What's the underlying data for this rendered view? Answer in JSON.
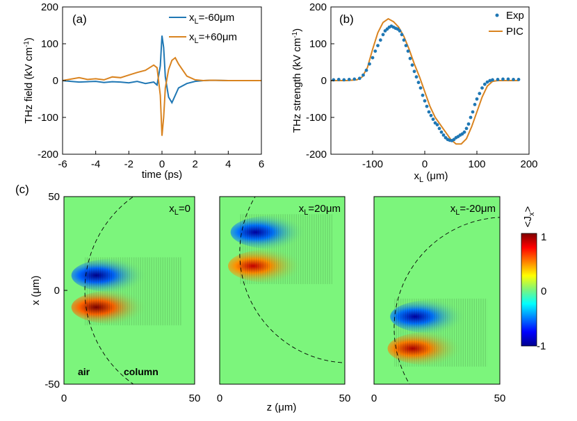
{
  "colors": {
    "blue": "#1f77b4",
    "orange": "#d9831f",
    "panel_bg": "#7cf57c"
  },
  "chart_data": [
    {
      "type": "line",
      "panel_label": "(a)",
      "xlabel": "time (ps)",
      "ylabel": "THz field (kV cm-1)",
      "xlim": [
        -6,
        6
      ],
      "ylim": [
        -200,
        200
      ],
      "xticks": [
        "-6",
        "-4",
        "-2",
        "0",
        "2",
        "4",
        "6"
      ],
      "yticks": [
        "-200",
        "-100",
        "0",
        "100",
        "200"
      ],
      "legend_position": "top-right",
      "series": [
        {
          "name": "x_L=-60μm",
          "legend_main": "x",
          "legend_sub": "L",
          "legend_rest": "=-60μm",
          "color": "#1f77b4",
          "x": [
            -6,
            -5.5,
            -5,
            -4.5,
            -4,
            -3.5,
            -3,
            -2.5,
            -2,
            -1.5,
            -1,
            -0.5,
            -0.3,
            -0.1,
            0,
            0.1,
            0.2,
            0.4,
            0.6,
            0.8,
            1,
            1.5,
            2,
            2.5,
            3,
            4,
            5,
            6
          ],
          "y": [
            0,
            -2,
            -4,
            -3,
            -2,
            -5,
            -3,
            -4,
            -6,
            -2,
            -8,
            -4,
            -12,
            40,
            122,
            90,
            10,
            -45,
            -60,
            -40,
            -20,
            -8,
            -2,
            0,
            1,
            0,
            0,
            0
          ]
        },
        {
          "name": "x_L=+60μm",
          "legend_main": "x",
          "legend_sub": "L",
          "legend_rest": "=+60μm",
          "color": "#d9831f",
          "x": [
            -6,
            -5.5,
            -5,
            -4.5,
            -4,
            -3.5,
            -3,
            -2.5,
            -2,
            -1.5,
            -1,
            -0.5,
            -0.3,
            -0.1,
            0,
            0.1,
            0.2,
            0.4,
            0.6,
            0.8,
            1,
            1.5,
            2,
            2.5,
            3,
            4,
            5,
            6
          ],
          "y": [
            0,
            4,
            8,
            3,
            5,
            2,
            10,
            8,
            15,
            22,
            28,
            42,
            35,
            -40,
            -150,
            -100,
            -20,
            30,
            55,
            62,
            45,
            12,
            2,
            0,
            1,
            0,
            0,
            0
          ]
        }
      ]
    },
    {
      "type": "scatter+line",
      "panel_label": "(b)",
      "xlabel": "x_L (μm)",
      "xlabel_main": "x",
      "xlabel_sub": "L",
      "xlabel_rest": " (μm)",
      "ylabel": "THz strength (kV cm-1)",
      "xlim": [
        -180,
        200
      ],
      "ylim": [
        -200,
        200
      ],
      "xticks": [
        "-100",
        "0",
        "100",
        "200"
      ],
      "yticks": [
        "-200",
        "-100",
        "0",
        "100",
        "200"
      ],
      "legend_position": "top-right",
      "series": [
        {
          "name": "Exp",
          "kind": "scatter",
          "color": "#1f77b4",
          "x": [
            -175,
            -165,
            -155,
            -145,
            -135,
            -125,
            -118,
            -112,
            -106,
            -100,
            -95,
            -90,
            -85,
            -80,
            -76,
            -72,
            -68,
            -64,
            -60,
            -56,
            -52,
            -48,
            -44,
            -40,
            -36,
            -32,
            -28,
            -24,
            -20,
            -16,
            -12,
            -8,
            -4,
            0,
            4,
            8,
            12,
            16,
            20,
            24,
            28,
            32,
            36,
            40,
            44,
            48,
            52,
            56,
            60,
            64,
            68,
            72,
            76,
            80,
            84,
            88,
            92,
            96,
            100,
            105,
            110,
            115,
            120,
            125,
            130,
            140,
            150,
            160,
            170,
            180
          ],
          "y": [
            2,
            3,
            2,
            3,
            4,
            6,
            15,
            28,
            45,
            62,
            80,
            95,
            110,
            125,
            135,
            140,
            145,
            148,
            145,
            142,
            140,
            135,
            125,
            110,
            95,
            80,
            60,
            42,
            25,
            10,
            -5,
            -20,
            -40,
            -55,
            -70,
            -85,
            -95,
            -105,
            -115,
            -120,
            -130,
            -140,
            -148,
            -155,
            -160,
            -162,
            -163,
            -160,
            -155,
            -152,
            -148,
            -145,
            -140,
            -130,
            -118,
            -100,
            -85,
            -65,
            -50,
            -35,
            -20,
            -10,
            -4,
            0,
            2,
            3,
            4,
            4,
            3,
            3
          ]
        },
        {
          "name": "PIC",
          "kind": "line",
          "color": "#d9831f",
          "x": [
            -180,
            -150,
            -130,
            -120,
            -110,
            -100,
            -90,
            -80,
            -70,
            -60,
            -50,
            -40,
            -30,
            -20,
            -10,
            0,
            10,
            20,
            30,
            40,
            50,
            60,
            70,
            80,
            90,
            100,
            110,
            120,
            130,
            140,
            160,
            180
          ],
          "y": [
            0,
            0,
            2,
            10,
            35,
            85,
            130,
            158,
            168,
            160,
            145,
            120,
            85,
            45,
            10,
            -30,
            -70,
            -100,
            -120,
            -140,
            -160,
            -172,
            -172,
            -158,
            -125,
            -85,
            -45,
            -15,
            -2,
            0,
            0,
            0
          ]
        }
      ]
    },
    {
      "type": "heatmap",
      "panel_label": "(c)",
      "xlabel": "z (μm)",
      "ylabel": "x (μm)",
      "xlim": [
        0,
        50
      ],
      "ylim": [
        -50,
        50
      ],
      "xticks": [
        "0",
        "50"
      ],
      "yticks": [
        "-50",
        "0",
        "50"
      ],
      "colorbar": {
        "title": "<Jx>",
        "title_main": "<J",
        "title_sub": "x",
        "title_rest": ">",
        "ticks": [
          "1",
          "0",
          "-1"
        ],
        "range": [
          -1,
          1
        ]
      },
      "annotations": [
        "air",
        "column"
      ],
      "panels": [
        {
          "label_main": "x",
          "label_sub": "L",
          "label_rest": "=0",
          "x_L": 0,
          "lobes": [
            {
              "z": 14,
              "x": 8,
              "sign": -1,
              "amp": 1.0
            },
            {
              "z": 14,
              "x": -9,
              "sign": 1,
              "amp": 1.0
            }
          ]
        },
        {
          "label_main": "x",
          "label_sub": "L",
          "label_rest": "=20μm",
          "x_L": 20,
          "lobes": [
            {
              "z": 16,
              "x": 31,
              "sign": -1,
              "amp": 0.95
            },
            {
              "z": 15,
              "x": 13,
              "sign": 1,
              "amp": 0.85
            }
          ]
        },
        {
          "label_main": "x",
          "label_sub": "L",
          "label_rest": "=-20μm",
          "x_L": -20,
          "lobes": [
            {
              "z": 18,
              "x": -14,
              "sign": -1,
              "amp": 0.95
            },
            {
              "z": 17,
              "x": -31,
              "sign": 1,
              "amp": 0.9
            }
          ]
        }
      ]
    }
  ]
}
